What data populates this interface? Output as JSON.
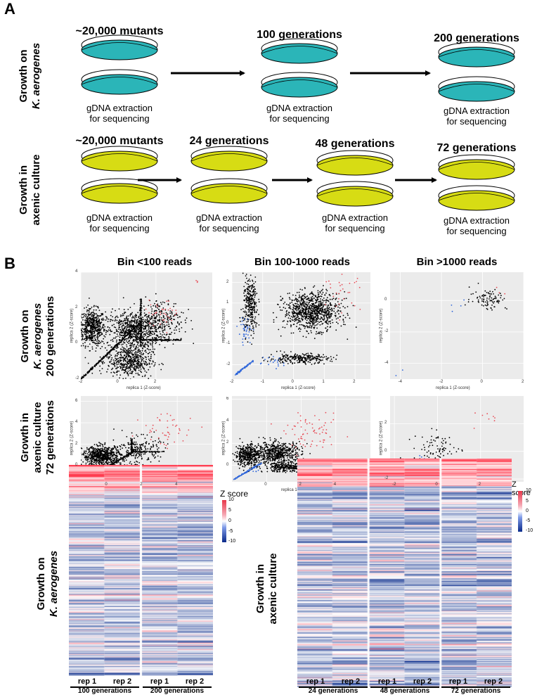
{
  "panelA": {
    "letter": "A",
    "row1": {
      "label_line1": "Growth on",
      "label_line2": "K. aerogenes",
      "color": "#2bb5b8",
      "stages": [
        {
          "title": "~20,000 mutants",
          "caption1": "gDNA extraction",
          "caption2": "for sequencing"
        },
        {
          "title": "100 generations",
          "caption1": "gDNA extraction",
          "caption2": "for sequencing"
        },
        {
          "title": "200 generations",
          "caption1": "gDNA extraction",
          "caption2": "for sequencing"
        }
      ]
    },
    "row2": {
      "label_line1": "Growth in",
      "label_line2": "axenic culture",
      "color": "#d7dc14",
      "stages": [
        {
          "title": "~20,000 mutants",
          "caption1": "gDNA extraction",
          "caption2": "for sequencing"
        },
        {
          "title": "24 generations",
          "caption1": "gDNA extraction",
          "caption2": "for sequencing"
        },
        {
          "title": "48 generations",
          "caption1": "gDNA extraction",
          "caption2": "for sequencing"
        },
        {
          "title": "72 generations",
          "caption1": "gDNA extraction",
          "caption2": "for sequencing"
        }
      ]
    }
  },
  "panelB": {
    "letter": "B",
    "bins": [
      "Bin <100 reads",
      "Bin 100-1000 reads",
      "Bin >1000 reads"
    ],
    "row1_label": [
      "Growth on",
      "K. aerogenes",
      "200 generations"
    ],
    "row2_label": [
      "Growth in",
      "axenic culture",
      "72 generations"
    ],
    "xlabel": "replica 1 (Z-score)",
    "ylabel": "replica 2 (Z-score)",
    "colors": {
      "black": "#000000",
      "red": "#e8505a",
      "blue": "#2b63d9"
    }
  },
  "chart_data": [
    {
      "type": "scatter",
      "title": "Bin <100 reads",
      "row": "Growth on K. aerogenes 200 generations",
      "xlabel": "replica 1 (Z-score)",
      "ylabel": "replica 2 (Z-score)",
      "xlim": [
        -2,
        5
      ],
      "ylim": [
        -2,
        4
      ],
      "xticks": [
        -2,
        0,
        2
      ],
      "yticks": [
        -2,
        0,
        2,
        4
      ]
    },
    {
      "type": "scatter",
      "title": "Bin 100-1000 reads",
      "row": "Growth on K. aerogenes 200 generations",
      "xlabel": "replica 1 (Z-score)",
      "ylabel": "replica 2 (Z-score)",
      "xlim": [
        -2,
        2.5
      ],
      "ylim": [
        -2.7,
        2.5
      ],
      "xticks": [
        -2,
        -1,
        0,
        1,
        2
      ],
      "yticks": [
        -2,
        -1,
        0,
        1,
        2
      ]
    },
    {
      "type": "scatter",
      "title": "Bin >1000 reads",
      "row": "Growth on K. aerogenes 200 generations",
      "xlabel": "replica 1 (Z-score)",
      "ylabel": "replica 2 (Z-score)",
      "xlim": [
        -4.5,
        2
      ],
      "ylim": [
        -5,
        1.8
      ],
      "xticks": [
        -4,
        -2,
        0,
        2
      ],
      "yticks": [
        -4,
        -2,
        0
      ]
    },
    {
      "type": "scatter",
      "title": "Bin <100 reads",
      "row": "Growth in axenic culture 72 generations",
      "xlabel": "replica 1 (Z-score)",
      "ylabel": "replica 2 (Z-score)",
      "xlim": [
        -1.5,
        6
      ],
      "ylim": [
        -1.5,
        6.5
      ],
      "xticks": [
        0,
        2,
        4
      ],
      "yticks": [
        0,
        2,
        4,
        6
      ]
    },
    {
      "type": "scatter",
      "title": "Bin 100-1000 reads",
      "row": "Growth in axenic culture 72 generations",
      "xlabel": "replica 1 (Z-score)",
      "ylabel": "replica 2 (Z-score)",
      "xlim": [
        -2,
        6
      ],
      "ylim": [
        -1.5,
        6.3
      ],
      "xticks": [
        0,
        2,
        4
      ],
      "yticks": [
        0,
        2,
        4,
        6
      ]
    },
    {
      "type": "scatter",
      "title": "Bin >1000 reads",
      "row": "Growth in axenic culture 72 generations",
      "xlabel": "replica 1 (Z-score)",
      "ylabel": "replica 2 (Z-score)",
      "xlim": [
        -2.2,
        4
      ],
      "ylim": [
        -2.2,
        4
      ],
      "xticks": [
        -2,
        0,
        2
      ],
      "yticks": [
        -2,
        0,
        2
      ]
    },
    {
      "type": "heatmap",
      "row_label": [
        "Growth on",
        "K. aerogenes"
      ],
      "legend_title": "Z score",
      "legend_ticks": [
        10,
        5,
        0,
        -5,
        -10
      ],
      "columns": [
        "rep 1",
        "rep 2",
        "rep 1",
        "rep 2"
      ],
      "groups": [
        "100 generations",
        "200 generations"
      ]
    },
    {
      "type": "heatmap",
      "row_label": [
        "Growth in",
        "axenic culture"
      ],
      "legend_title": "Z score",
      "legend_ticks": [
        10,
        5,
        0,
        -5,
        -10
      ],
      "columns": [
        "rep 1",
        "rep 2",
        "rep 1",
        "rep 2",
        "rep 1",
        "rep 2"
      ],
      "groups": [
        "24 generations",
        "48 generations",
        "72 generations"
      ]
    }
  ]
}
